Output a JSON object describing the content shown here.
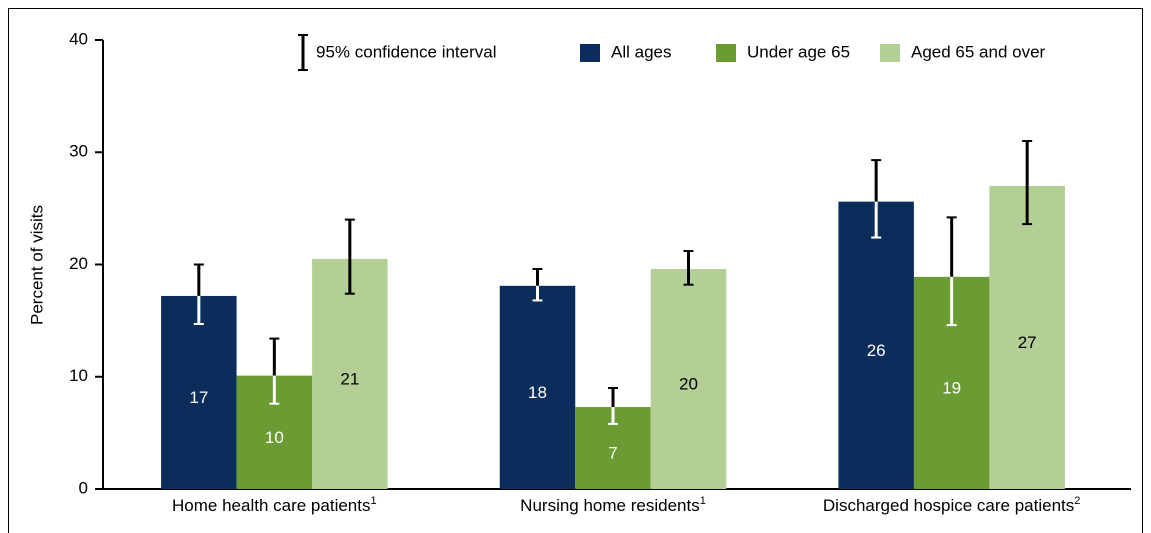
{
  "chart_data": {
    "type": "bar",
    "y_label": "Percent of visits",
    "ci_legend": "95% confidence interval",
    "categories": [
      "Home health care patients",
      "Nursing home residents",
      "Discharged hospice care patients"
    ],
    "category_notes": [
      "1",
      "1",
      "2"
    ],
    "series": [
      {
        "name": "All ages",
        "color": "#0b2d5b",
        "values": [
          17.2,
          18.1,
          25.6
        ],
        "value_labels": [
          "17",
          "18",
          "26"
        ],
        "ci_low": [
          14.7,
          16.8,
          22.4
        ],
        "ci_high": [
          20.0,
          19.6,
          29.3
        ]
      },
      {
        "name": "Under age 65",
        "color": "#6a9c33",
        "values": [
          10.1,
          7.3,
          18.9
        ],
        "value_labels": [
          "10",
          "7",
          "19"
        ],
        "ci_low": [
          7.6,
          5.8,
          14.6
        ],
        "ci_high": [
          13.4,
          9.0,
          24.2
        ]
      },
      {
        "name": "Aged 65 and over",
        "color": "#b4cf96",
        "values": [
          20.5,
          19.6,
          27.0
        ],
        "value_labels": [
          "21",
          "20",
          "27"
        ],
        "ci_low": [
          17.4,
          18.2,
          23.6
        ],
        "ci_high": [
          24.0,
          21.2,
          31.0
        ]
      }
    ],
    "ylim": [
      0,
      40
    ],
    "yticks": [
      0,
      10,
      20,
      30,
      40
    ]
  }
}
